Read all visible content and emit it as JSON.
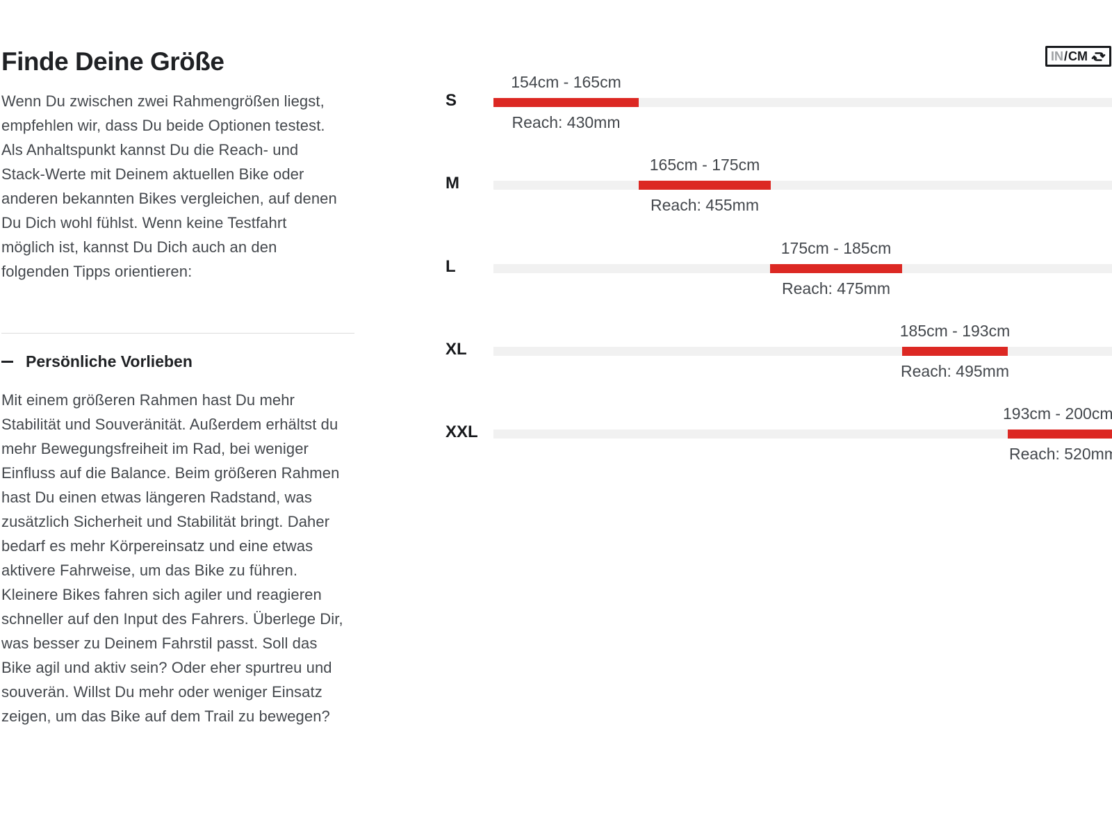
{
  "page": {
    "title": "Finde Deine Größe",
    "intro": "Wenn Du zwischen zwei Rahmengrößen liegst, empfehlen wir, dass Du beide Optionen testest. Als Anhaltspunkt kannst Du die Reach- und Stack-Werte mit Deinem aktuellen Bike oder anderen bekannten Bikes vergleichen, auf denen Du Dich wohl fühlst. Wenn keine Testfahrt möglich ist, kannst Du Dich auch an den folgenden Tipps orientieren:",
    "accordion": {
      "state": "expanded",
      "title": "Persönliche Vorlieben",
      "body": "Mit einem größeren Rahmen hast Du mehr Stabilität und Souveränität. Außerdem erhältst du mehr Bewegungsfreiheit im Rad, bei weniger Einfluss auf die Balance. Beim größeren Rahmen hast Du einen etwas längeren Radstand, was zusätzlich Sicherheit und Stabilität bringt. Daher bedarf es mehr Körpereinsatz und eine etwas aktivere Fahrweise, um das Bike zu führen. Kleinere Bikes fahren sich agiler und reagieren schneller auf den Input des Fahrers. Überlege Dir, was besser zu Deinem Fahrstil passt. Soll das Bike agil und aktiv sein? Oder eher spurtreu und souverän. Willst Du mehr oder weniger Einsatz zeigen, um das Bike auf dem Trail zu bewegen?"
    }
  },
  "unit_toggle": {
    "in_label": "IN",
    "separator": "/",
    "cm_label": "CM",
    "icon": "swap-arrows"
  },
  "chart_data": {
    "type": "bar",
    "orientation": "horizontal",
    "title": "",
    "categories": [
      "S",
      "M",
      "L",
      "XL",
      "XXL"
    ],
    "series": [
      {
        "size": "S",
        "height_min_cm": 154,
        "height_max_cm": 165,
        "range_label": "154cm - 165cm",
        "reach_mm": 430,
        "reach_label": "Reach: 430mm"
      },
      {
        "size": "M",
        "height_min_cm": 165,
        "height_max_cm": 175,
        "range_label": "165cm - 175cm",
        "reach_mm": 455,
        "reach_label": "Reach: 455mm"
      },
      {
        "size": "L",
        "height_min_cm": 175,
        "height_max_cm": 185,
        "range_label": "175cm - 185cm",
        "reach_mm": 475,
        "reach_label": "Reach: 475mm"
      },
      {
        "size": "XL",
        "height_min_cm": 185,
        "height_max_cm": 193,
        "range_label": "185cm - 193cm",
        "reach_mm": 495,
        "reach_label": "Reach: 495mm"
      },
      {
        "size": "XXL",
        "height_min_cm": 193,
        "height_max_cm": 200,
        "range_label": "193cm - 200cm",
        "reach_mm": 520,
        "reach_label": "Reach: 520mm"
      }
    ],
    "axis_range_cm": [
      154,
      201
    ],
    "grid": "off",
    "legend": "none",
    "colors": {
      "bar_fill": "#dc2823",
      "bar_track": "#f1f1f1"
    }
  }
}
